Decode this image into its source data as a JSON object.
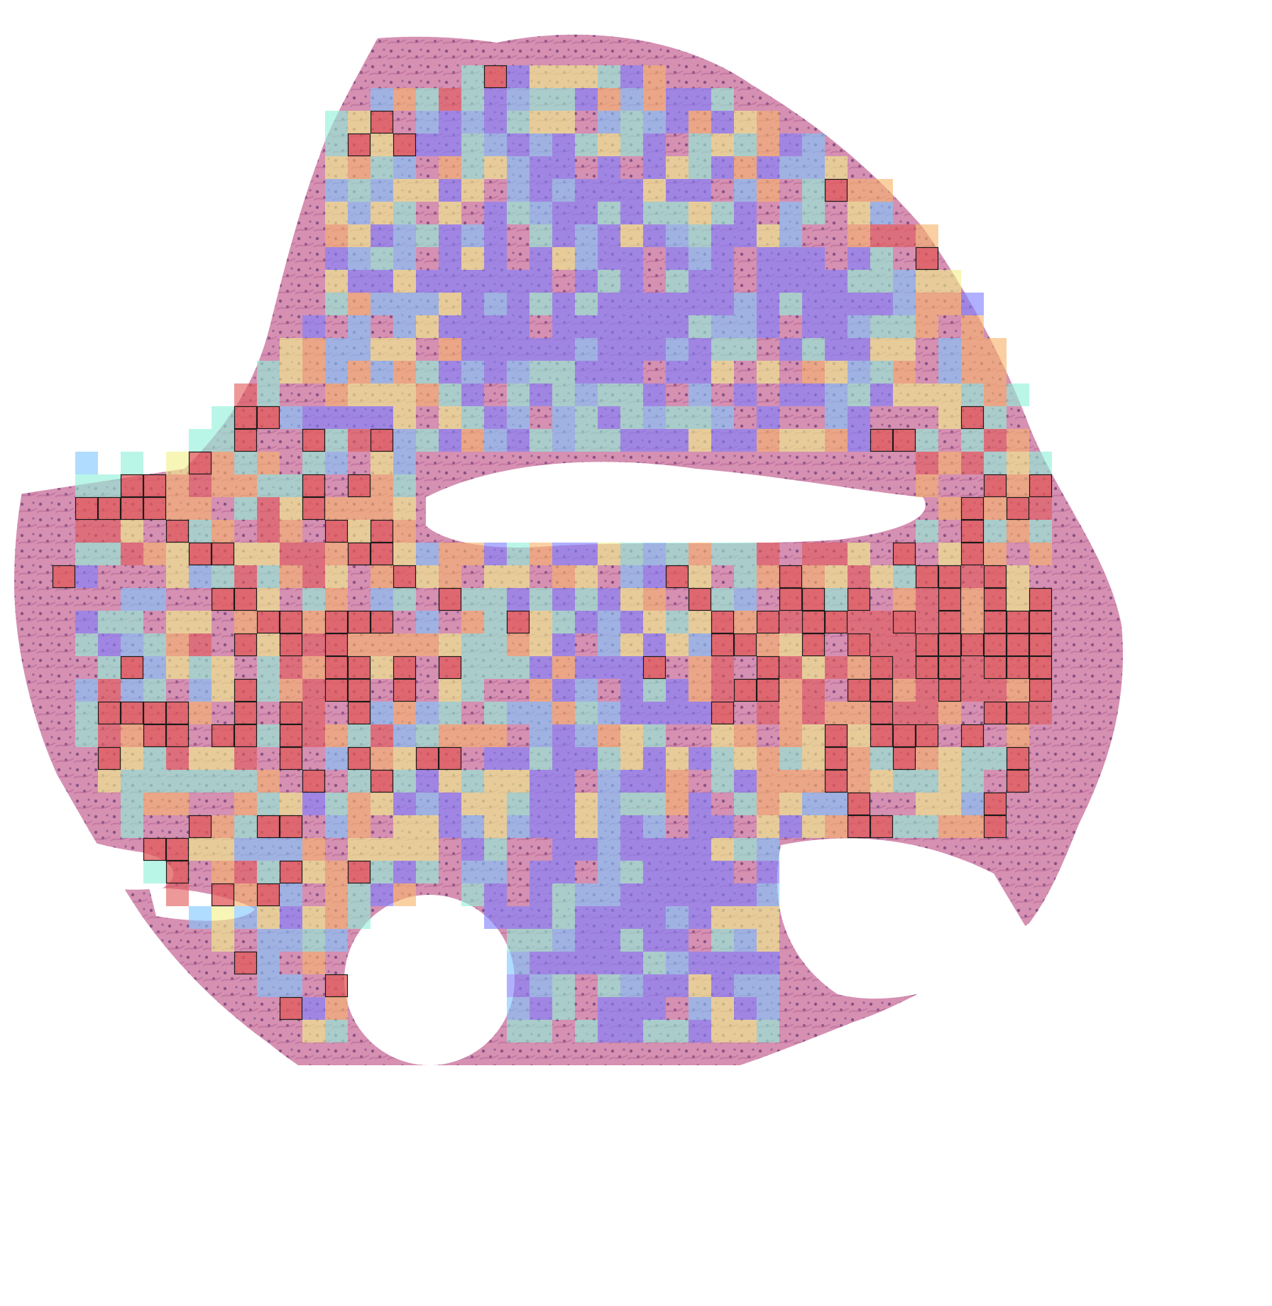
{
  "image": {
    "kind": "histology-heatmap-overlay",
    "description_colors": {
      "background": "#ffffff",
      "tissue_pink": "#d98aa8",
      "tissue_purple": "#7a3f8f",
      "nuclei": "#4a1f5f"
    },
    "heatmap_palette": {
      "low": "#7f7fff",
      "low_mid": "#7fc6ff",
      "mid": "#8ff0d8",
      "mid_high": "#f2f08a",
      "high": "#f7b36b",
      "very_high": "#e25a5a"
    },
    "outlined_tile_color": "#1a1a1a"
  }
}
